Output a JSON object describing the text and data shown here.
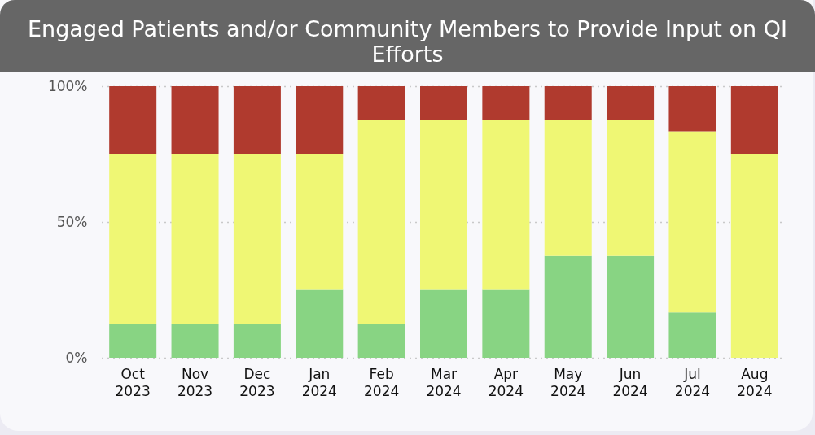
{
  "chart_data": {
    "type": "bar",
    "title": "Engaged Patients and/or Community Members to Provide Input on QI Efforts",
    "categories": [
      "Oct 2023",
      "Nov 2023",
      "Dec 2023",
      "Jan 2024",
      "Feb 2024",
      "Mar 2024",
      "Apr 2024",
      "May 2024",
      "Jun 2024",
      "Jul 2024",
      "Aug 2024"
    ],
    "stacked": true,
    "series": [
      {
        "color": "#88d483",
        "values": [
          12.5,
          12.5,
          12.5,
          25,
          12.5,
          25,
          25,
          37.5,
          37.5,
          16.7,
          0
        ]
      },
      {
        "color": "#eff774",
        "values": [
          62.5,
          62.5,
          62.5,
          50,
          75,
          62.5,
          62.5,
          50,
          50,
          66.7,
          75
        ]
      },
      {
        "color": "#b03a2e",
        "values": [
          25,
          25,
          25,
          25,
          12.5,
          12.5,
          12.5,
          12.5,
          12.5,
          16.6,
          25
        ]
      }
    ],
    "ylim": [
      0,
      100
    ],
    "yticks": [
      {
        "value": 0,
        "label": "0%"
      },
      {
        "value": 50,
        "label": "50%"
      },
      {
        "value": 100,
        "label": "100%"
      }
    ],
    "grid": "y"
  }
}
